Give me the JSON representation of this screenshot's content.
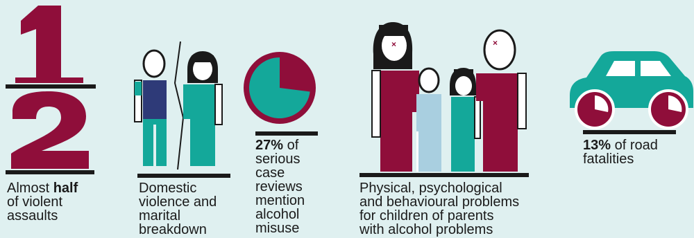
{
  "colors": {
    "background": "#dff0f0",
    "maroon": "#8f0e3a",
    "teal": "#14a89a",
    "navy": "#2e3a78",
    "light_blue": "#a9cfe0",
    "dark": "#1a1a1a"
  },
  "fraction": {
    "numerator": "1",
    "denominator": "2"
  },
  "stats": [
    {
      "bold": "",
      "lines": [
        "Almost ",
        "of violent",
        "assaults"
      ],
      "inline_bold": "half"
    },
    {
      "bold": "",
      "lines": [
        "Domestic",
        "violence and",
        "marital",
        "breakdown"
      ]
    },
    {
      "bold": "27%",
      "lines": [
        " of",
        "serious",
        "case",
        "reviews",
        "mention",
        "alcohol",
        "misuse"
      ],
      "pie_fraction": 0.27
    },
    {
      "bold": "",
      "lines": [
        "Physical, psychological",
        "and behavioural problems",
        "for children of parents",
        "with alcohol problems"
      ]
    },
    {
      "bold": "13%",
      "lines": [
        " of road",
        "fatalities"
      ]
    }
  ]
}
